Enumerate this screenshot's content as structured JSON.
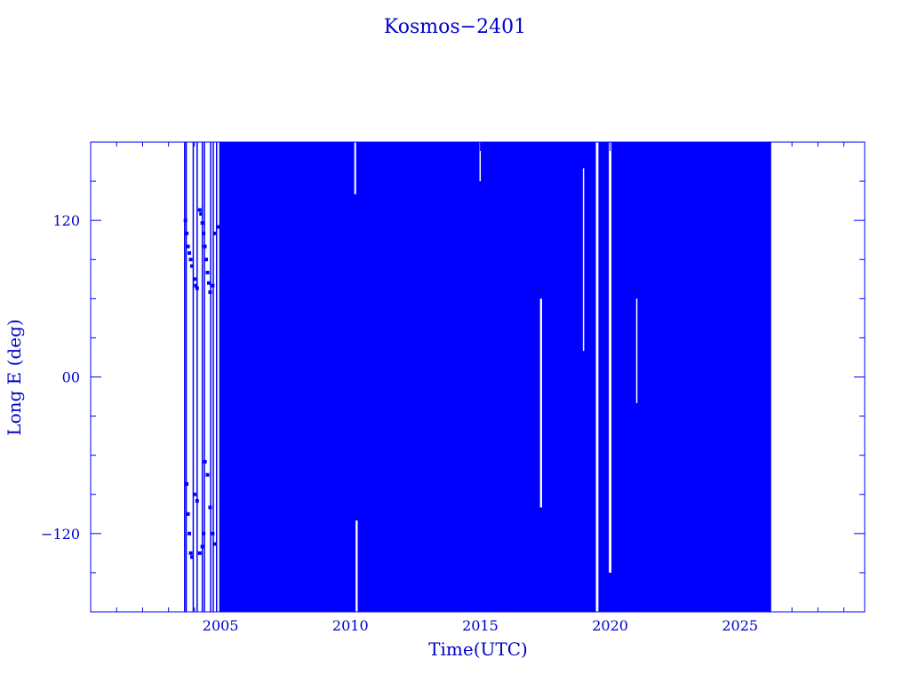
{
  "chart_data": {
    "type": "scatter",
    "title": "Kosmos−2401",
    "xlabel": "Time(UTC)",
    "ylabel": "Long E (deg)",
    "xlim": [
      2000.0,
      2029.8
    ],
    "ylim": [
      -180,
      180
    ],
    "x_ticks": [
      2005,
      2010,
      2015,
      2020,
      2025
    ],
    "x_tick_labels": [
      "2005",
      "2010",
      "2015",
      "2020",
      "2025"
    ],
    "y_ticks": [
      120,
      0,
      -120
    ],
    "y_tick_labels": [
      "120",
      "00",
      "−120"
    ],
    "grid": false,
    "color": "#0000ff",
    "series": [
      {
        "x": [
          2003.65,
          2003.7,
          2003.75,
          2003.8,
          2003.85,
          2003.9,
          2004.0,
          2004.05,
          2004.1,
          2004.2,
          2004.25,
          2004.3,
          2004.35,
          2004.4,
          2004.45,
          2004.5,
          2004.55,
          2004.6,
          2004.7,
          2004.8,
          2004.9,
          2003.7,
          2003.75,
          2003.8,
          2003.85,
          2003.9,
          2004.0,
          2004.1,
          2004.2,
          2004.3,
          2004.35,
          2004.4,
          2004.5,
          2004.6,
          2004.7,
          2004.8
        ],
        "y": [
          120,
          110,
          100,
          95,
          90,
          85,
          75,
          70,
          68,
          128,
          125,
          118,
          110,
          100,
          90,
          80,
          72,
          65,
          70,
          110,
          115,
          -82,
          -105,
          -120,
          -135,
          -138,
          -90,
          -95,
          -135,
          -130,
          -120,
          -65,
          -75,
          -100,
          -120,
          -128
        ]
      }
    ],
    "dense_regions": [
      {
        "x_start": 2004.95,
        "x_end": 2026.2,
        "y_min": -180,
        "y_max": 180,
        "note": "continuous drift track"
      }
    ]
  }
}
